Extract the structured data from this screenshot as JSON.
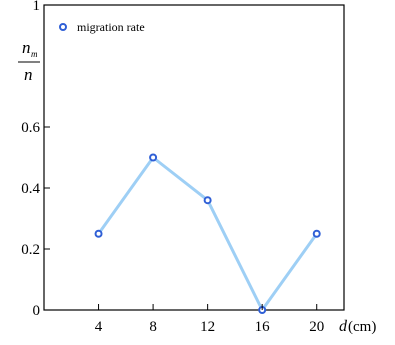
{
  "chart_data": {
    "type": "line",
    "x": [
      4,
      8,
      12,
      16,
      20
    ],
    "xticks": [
      "4",
      "8",
      "12",
      "16",
      "20"
    ],
    "xlim": [
      0,
      22
    ],
    "ylim": [
      0,
      1
    ],
    "yticks": [
      "0",
      "0.2",
      "0.4",
      "0.6",
      "1"
    ],
    "series": [
      {
        "name": "migration rate",
        "values": [
          0.25,
          0.5,
          0.36,
          0.0,
          0.25
        ]
      }
    ],
    "ylabel": {
      "numerator": "n",
      "numerator_sub": "m",
      "denominator": "n"
    },
    "xlabel": {
      "variable": "d",
      "unit": "(cm)"
    },
    "legend_position": "top-left",
    "grid": false,
    "colors": {
      "line": "#9ecff5",
      "marker": "#2f5fd6",
      "axis": "#000000"
    }
  }
}
